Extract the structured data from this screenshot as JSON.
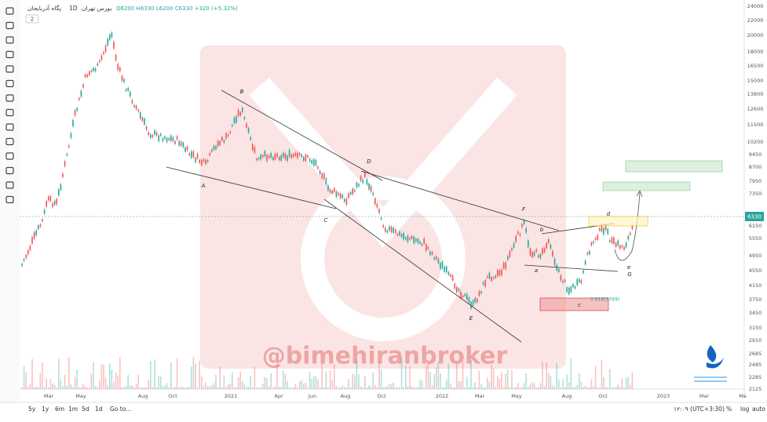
{
  "header": {
    "symbol": "پگاه آذربایجان",
    "interval": "1D",
    "exchange": "بورس تهران",
    "ohlc": "O6200 H6330 L6200 C6330 +320 (+5.32%)",
    "panes": "2"
  },
  "price_axis": [
    "24000",
    "22000",
    "20000",
    "18000",
    "16500",
    "15000",
    "13800",
    "12600",
    "11500",
    "10200",
    "9450",
    "8700",
    "7950",
    "7350",
    "6150",
    "5550",
    "4950",
    "4550",
    "4150",
    "3750",
    "3450",
    "3150",
    "2910",
    "2685",
    "2485",
    "2285",
    "2125"
  ],
  "last_price": "6330",
  "time_axis": [
    "Mar",
    "May",
    "Aug",
    "Oct",
    "2021",
    "Apr",
    "Jun",
    "Aug",
    "Oct",
    "2022",
    "Mar",
    "May",
    "Aug",
    "Oct",
    "2023",
    "Mar",
    "Ma"
  ],
  "annotations": [
    "A",
    "B",
    "C",
    "D",
    "E",
    "F",
    "a",
    "b",
    "c",
    "d",
    "e",
    "G"
  ],
  "fib_label": "0.618(3769)",
  "watermark": "@bimehiranbroker",
  "ranges": [
    "5y",
    "1y",
    "6m",
    "1m",
    "5d",
    "1d"
  ],
  "goto": "Go to...",
  "clock": "۱۲:۰۹ (UTC+3:30)",
  "scale_buttons": [
    "%",
    "log",
    "auto"
  ]
}
